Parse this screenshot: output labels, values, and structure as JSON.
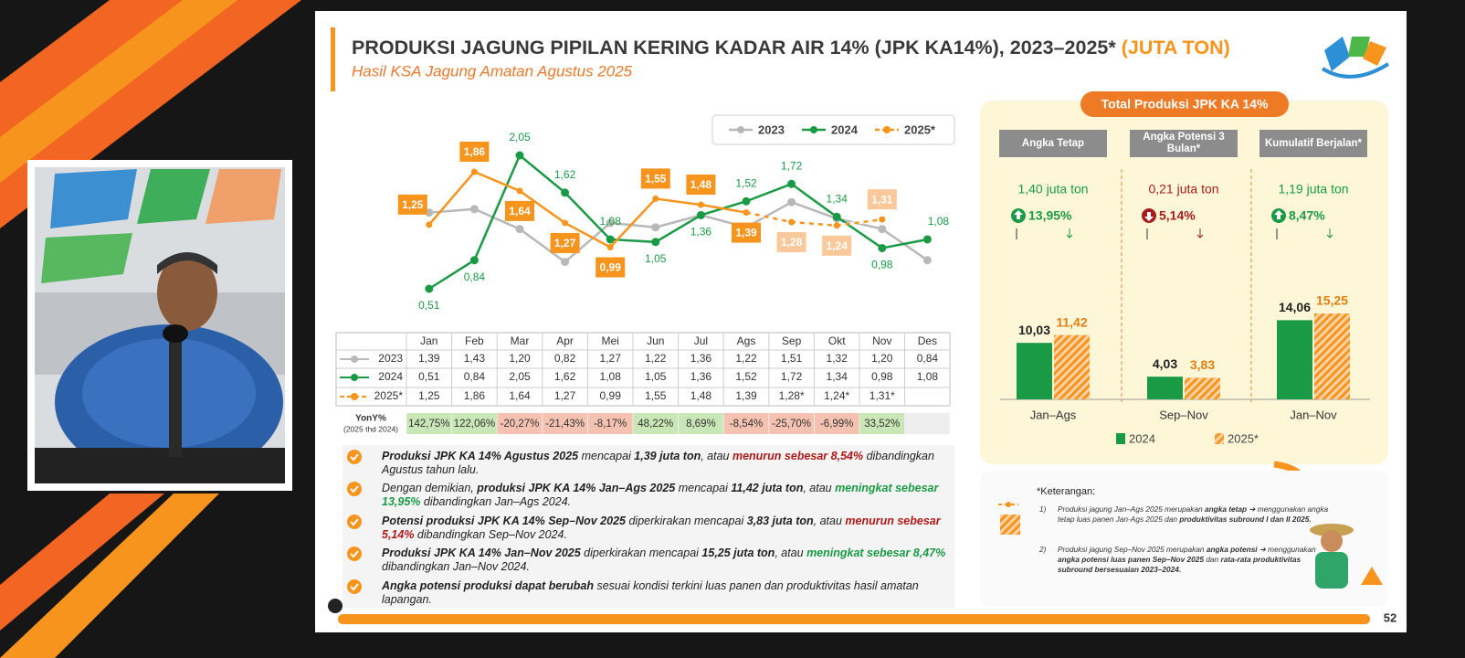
{
  "slide": {
    "title": "PRODUKSI JAGUNG PIPILAN KERING KADAR AIR 14% (JPK KA14%), 2023–2025*",
    "title_unit": "(JUTA TON)",
    "subtitle": "Hasil KSA Jagung Amatan Agustus 2025",
    "page_number": "52"
  },
  "chart_data": [
    {
      "type": "line",
      "categories": [
        "Jan",
        "Feb",
        "Mar",
        "Apr",
        "Mei",
        "Jun",
        "Jul",
        "Ags",
        "Sep",
        "Okt",
        "Nov",
        "Des"
      ],
      "series": [
        {
          "name": "2023",
          "color": "#b8b8b8",
          "values": [
            1.39,
            1.43,
            1.2,
            0.82,
            1.27,
            1.22,
            1.36,
            1.22,
            1.51,
            1.32,
            1.2,
            0.84
          ]
        },
        {
          "name": "2024",
          "color": "#1a9a45",
          "values": [
            0.51,
            0.84,
            2.05,
            1.62,
            1.08,
            1.05,
            1.36,
            1.52,
            1.72,
            1.34,
            0.98,
            1.08
          ],
          "value_labels": [
            "0,51",
            "0,84",
            "2,05",
            "1,62",
            "1,08",
            "1,05",
            "1,36",
            "1,52",
            "1,72",
            "1,34",
            "0,98",
            "1,08"
          ]
        },
        {
          "name": "2025*",
          "color": "#f7941d",
          "projection_start": "Ags",
          "values": [
            1.25,
            1.86,
            1.64,
            1.27,
            0.99,
            1.55,
            1.48,
            1.39,
            1.28,
            1.24,
            1.31,
            null
          ],
          "value_labels": [
            "1,25",
            "1,86",
            "1,64",
            "1,27",
            "0,99",
            "1,55",
            "1,48",
            "1,39",
            "1,28",
            "1,24",
            "1,31",
            null
          ]
        }
      ]
    },
    {
      "type": "bar",
      "title": "Total Produksi JPK KA 14%",
      "categories": [
        "Jan–Ags",
        "Sep–Nov",
        "Jan–Nov"
      ],
      "series": [
        {
          "name": "2024",
          "color": "#1a9a45",
          "values": [
            10.03,
            4.03,
            14.06
          ],
          "value_labels": [
            "10,03",
            "4,03",
            "14,06"
          ]
        },
        {
          "name": "2025*",
          "color": "#f7941d",
          "pattern": "hatched",
          "values": [
            11.42,
            3.83,
            15.25
          ],
          "value_labels": [
            "11,42",
            "3,83",
            "15,25"
          ]
        }
      ],
      "panels": [
        {
          "header": "Angka Tetap",
          "change": "1,40 juta ton",
          "percent": "13,95%",
          "direction": "up"
        },
        {
          "header": "Angka Potensi 3 Bulan*",
          "change": "0,21 juta ton",
          "percent": "5,14%",
          "direction": "down"
        },
        {
          "header": "Kumulatif Berjalan*",
          "change": "1,19 juta ton",
          "percent": "8,47%",
          "direction": "up"
        }
      ]
    }
  ],
  "table": {
    "rows": [
      [
        "1,39",
        "1,43",
        "1,20",
        "0,82",
        "1,27",
        "1,22",
        "1,36",
        "1,22",
        "1,51",
        "1,32",
        "1,20",
        "0,84"
      ],
      [
        "0,51",
        "0,84",
        "2,05",
        "1,62",
        "1,08",
        "1,05",
        "1,36",
        "1,52",
        "1,72",
        "1,34",
        "0,98",
        "1,08"
      ],
      [
        "1,25",
        "1,86",
        "1,64",
        "1,27",
        "0,99",
        "1,55",
        "1,48",
        "1,39",
        "1,28*",
        "1,24*",
        "1,31*"
      ]
    ],
    "yoy_label": "YonY%",
    "yoy_sublabel": "(2025 thd 2024)",
    "yoy": [
      "142,75%",
      "122,06%",
      "-20,27%",
      "-21,43%",
      "-8,17%",
      "48,22%",
      "8,69%",
      "-8,54%",
      "-25,70%",
      "-6,99%",
      "33,52%"
    ]
  },
  "bullets": [
    [
      {
        "text": "Produksi JPK KA 14% Agustus 2025",
        "style": "b"
      },
      {
        "text": " mencapai ",
        "style": "n"
      },
      {
        "text": "1,39 juta ton",
        "style": "b"
      },
      {
        "text": ", atau ",
        "style": "n"
      },
      {
        "text": "menurun sebesar 8,54%",
        "style": "red"
      },
      {
        "text": " dibandingkan Agustus tahun lalu.",
        "style": "n"
      }
    ],
    [
      {
        "text": "Dengan demikian, ",
        "style": "n"
      },
      {
        "text": "produksi JPK KA 14% Jan–Ags 2025",
        "style": "b"
      },
      {
        "text": " mencapai ",
        "style": "n"
      },
      {
        "text": "11,42 juta ton",
        "style": "b"
      },
      {
        "text": ", atau ",
        "style": "n"
      },
      {
        "text": "meningkat sebesar 13,95%",
        "style": "green"
      },
      {
        "text": " dibandingkan Jan–Ags 2024.",
        "style": "n"
      }
    ],
    [
      {
        "text": "Potensi produksi JPK KA 14% Sep–Nov 2025",
        "style": "b"
      },
      {
        "text": " diperkirakan mencapai ",
        "style": "n"
      },
      {
        "text": "3,83 juta ton",
        "style": "b"
      },
      {
        "text": ", atau ",
        "style": "n"
      },
      {
        "text": "menurun sebesar 5,14%",
        "style": "red"
      },
      {
        "text": " dibandingkan Sep–Nov 2024.",
        "style": "n"
      }
    ],
    [
      {
        "text": "Produksi JPK KA 14% Jan–Nov 2025",
        "style": "b"
      },
      {
        "text": " diperkirakan mencapai ",
        "style": "n"
      },
      {
        "text": "15,25 juta ton",
        "style": "b"
      },
      {
        "text": ", atau ",
        "style": "n"
      },
      {
        "text": "meningkat sebesar 8,47%",
        "style": "green"
      },
      {
        "text": " dibandingkan Jan–Nov 2024.",
        "style": "n"
      }
    ],
    [
      {
        "text": "Angka potensi produksi dapat berubah",
        "style": "b"
      },
      {
        "text": " sesuai kondisi terkini luas panen dan produktivitas hasil amatan lapangan.",
        "style": "n"
      }
    ]
  ],
  "notes": {
    "title": "*Keterangan:",
    "items": [
      {
        "number": "1)",
        "segments": [
          {
            "text": "Produksi jagung Jan–Ags 2025 merupakan ",
            "style": "n"
          },
          {
            "text": "angka tetap",
            "style": "b"
          },
          {
            "text": " ➔ menggunakan angka tetap luas panen Jan-Ags 2025 dan ",
            "style": "n"
          },
          {
            "text": "produktivitas subround I dan II 2025.",
            "style": "b"
          }
        ]
      },
      {
        "number": "2)",
        "segments": [
          {
            "text": "Produksi jagung Sep–Nov 2025 merupakan ",
            "style": "n"
          },
          {
            "text": "angka potensi",
            "style": "b"
          },
          {
            "text": " ➔ menggunakan ",
            "style": "n"
          },
          {
            "text": "angka potensi luas panen Sep–Nov 2025",
            "style": "b"
          },
          {
            "text": " dan ",
            "style": "n"
          },
          {
            "text": "rata-rata produktivitas subround bersesuaian 2023–2024.",
            "style": "b"
          }
        ]
      }
    ]
  }
}
